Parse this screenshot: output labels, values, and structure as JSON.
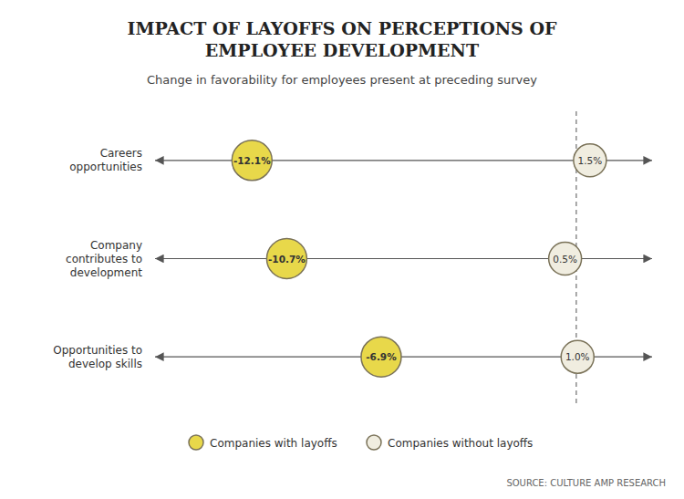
{
  "chart_data": {
    "type": "dot",
    "title": "IMPACT OF LAYOFFS ON PERCEPTIONS OF\nEMPLOYEE DEVELOPMENT",
    "subtitle": "Change in favorability for employees present at preceding survey",
    "source": "SOURCE: CULTURE AMP RESEARCH",
    "orientation": "horizontal",
    "categories": [
      "Careers\nopportunities",
      "Company\ncontributes to\ndevelopment",
      "Opportunities to\ndevelop skills"
    ],
    "series": [
      {
        "name": "Companies with layoffs",
        "color": "#e8d84a",
        "values": [
          -12.1,
          -10.7,
          -6.9
        ],
        "value_labels": [
          "-12.1%",
          "-10.7%",
          "-6.9%"
        ]
      },
      {
        "name": "Companies without layoffs",
        "color": "#f0ede0",
        "values": [
          1.5,
          0.5,
          1.0
        ],
        "value_labels": [
          "1.5%",
          "0.5%",
          "1.0%"
        ]
      }
    ],
    "reference_x": 0.95,
    "xlim": [
      -16,
      4
    ],
    "data_labels": true,
    "tick_labels": "y",
    "grid": false,
    "legend": "bottom"
  }
}
